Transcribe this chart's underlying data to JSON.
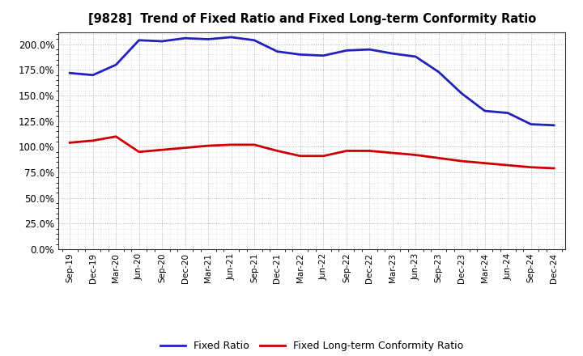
{
  "title": "[9828]  Trend of Fixed Ratio and Fixed Long-term Conformity Ratio",
  "x_labels": [
    "Sep-19",
    "Dec-19",
    "Mar-20",
    "Jun-20",
    "Sep-20",
    "Dec-20",
    "Mar-21",
    "Jun-21",
    "Sep-21",
    "Dec-21",
    "Mar-22",
    "Jun-22",
    "Sep-22",
    "Dec-22",
    "Mar-23",
    "Jun-23",
    "Sep-23",
    "Dec-23",
    "Mar-24",
    "Jun-24",
    "Sep-24",
    "Dec-24"
  ],
  "fixed_ratio": [
    172,
    170,
    180,
    204,
    203,
    206,
    205,
    207,
    204,
    193,
    190,
    189,
    194,
    195,
    191,
    188,
    173,
    152,
    135,
    133,
    122,
    121
  ],
  "fixed_lt_ratio": [
    104,
    106,
    110,
    95,
    97,
    99,
    101,
    102,
    102,
    96,
    91,
    91,
    96,
    96,
    94,
    92,
    89,
    86,
    84,
    82,
    80,
    79
  ],
  "ylim": [
    0,
    212
  ],
  "yticks": [
    0,
    25,
    50,
    75,
    100,
    125,
    150,
    175,
    200
  ],
  "blue_color": "#2222bb",
  "red_color": "#cc0000",
  "bg_color": "#ffffff",
  "plot_bg_color": "#ffffff",
  "grid_color": "#999999",
  "legend_fixed_ratio": "Fixed Ratio",
  "legend_fixed_lt_ratio": "Fixed Long-term Conformity Ratio"
}
